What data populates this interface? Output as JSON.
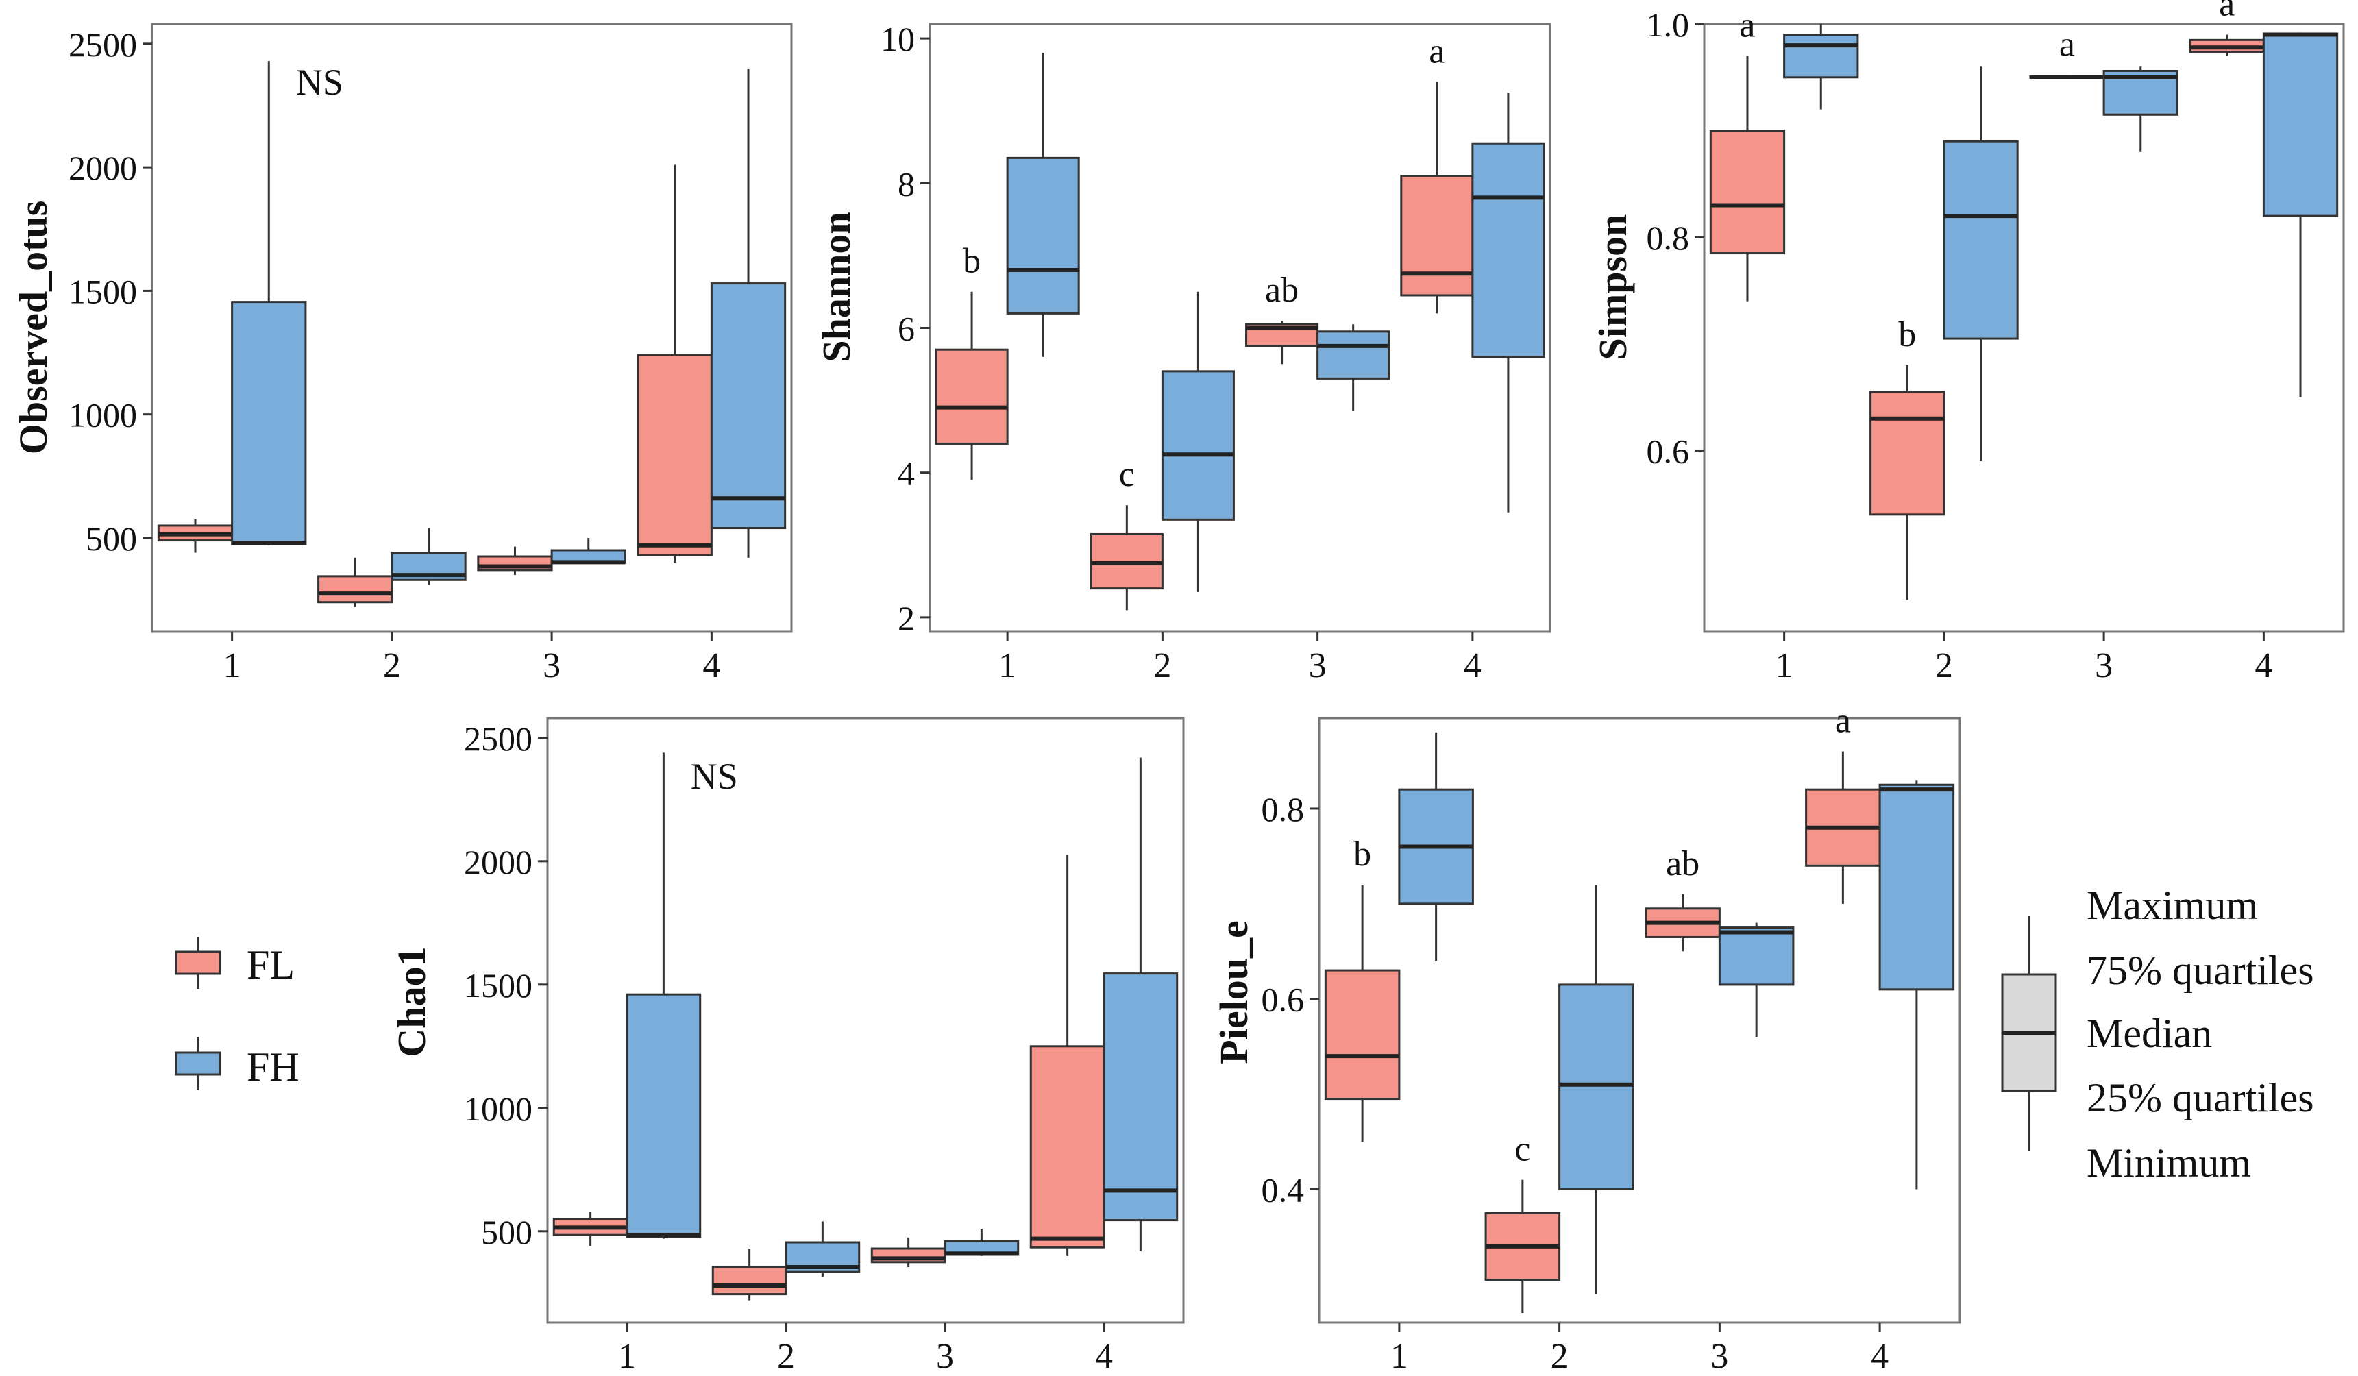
{
  "colors": {
    "FL": "#F4948A",
    "FH": "#7AADD9",
    "stroke": "#333333",
    "frame": "#777777",
    "legend_box": "#D9D9D9"
  },
  "legend": {
    "groups": [
      {
        "key": "FL",
        "label": "FL"
      },
      {
        "key": "FH",
        "label": "FH"
      }
    ],
    "box_labels": [
      "Maximum",
      "75% quartiles",
      "Median",
      "25% quartiles",
      "Minimum"
    ]
  },
  "chart_data": [
    {
      "id": "observed",
      "type": "box",
      "ylabel": "Observed_otus",
      "ylim": [
        120,
        2580
      ],
      "yticks": [
        500,
        1000,
        1500,
        2000,
        2500
      ],
      "categories": [
        "1",
        "2",
        "3",
        "4"
      ],
      "annotation": "NS",
      "series": [
        {
          "name": "FL",
          "boxes": [
            {
              "min": 440,
              "q1": 490,
              "median": 515,
              "q3": 550,
              "max": 575
            },
            {
              "min": 220,
              "q1": 240,
              "median": 275,
              "q3": 345,
              "max": 420
            },
            {
              "min": 350,
              "q1": 370,
              "median": 385,
              "q3": 425,
              "max": 465
            },
            {
              "min": 400,
              "q1": 430,
              "median": 470,
              "q3": 1240,
              "max": 2010
            }
          ]
        },
        {
          "name": "FH",
          "boxes": [
            {
              "min": 470,
              "q1": 475,
              "median": 480,
              "q3": 1455,
              "max": 2430
            },
            {
              "min": 310,
              "q1": 330,
              "median": 350,
              "q3": 440,
              "max": 540
            },
            {
              "min": 395,
              "q1": 400,
              "median": 402,
              "q3": 450,
              "max": 500
            },
            {
              "min": 420,
              "q1": 540,
              "median": 660,
              "q3": 1530,
              "max": 2400
            }
          ]
        }
      ]
    },
    {
      "id": "shannon",
      "type": "box",
      "ylabel": "Shannon",
      "ylim": [
        1.8,
        10.2
      ],
      "yticks": [
        2,
        4,
        6,
        8,
        10
      ],
      "categories": [
        "1",
        "2",
        "3",
        "4"
      ],
      "letters": [
        "b",
        "c",
        "ab",
        "a"
      ],
      "series": [
        {
          "name": "FL",
          "boxes": [
            {
              "min": 3.9,
              "q1": 4.4,
              "median": 4.9,
              "q3": 5.7,
              "max": 6.5
            },
            {
              "min": 2.1,
              "q1": 2.4,
              "median": 2.75,
              "q3": 3.15,
              "max": 3.55
            },
            {
              "min": 5.5,
              "q1": 5.75,
              "median": 6.0,
              "q3": 6.05,
              "max": 6.1
            },
            {
              "min": 6.2,
              "q1": 6.45,
              "median": 6.75,
              "q3": 8.1,
              "max": 9.4
            }
          ]
        },
        {
          "name": "FH",
          "boxes": [
            {
              "min": 5.6,
              "q1": 6.2,
              "median": 6.8,
              "q3": 8.35,
              "max": 9.8
            },
            {
              "min": 2.35,
              "q1": 3.35,
              "median": 4.25,
              "q3": 5.4,
              "max": 6.5
            },
            {
              "min": 4.85,
              "q1": 5.3,
              "median": 5.75,
              "q3": 5.95,
              "max": 6.05
            },
            {
              "min": 3.45,
              "q1": 5.6,
              "median": 7.8,
              "q3": 8.55,
              "max": 9.25
            }
          ]
        }
      ]
    },
    {
      "id": "simpson",
      "type": "box",
      "ylabel": "Simpson",
      "ylim": [
        0.43,
        1.0
      ],
      "yticks": [
        0.6,
        0.8,
        1.0
      ],
      "ytick_labels": [
        "0.6",
        "0.8",
        "1.0"
      ],
      "categories": [
        "1",
        "2",
        "3",
        "4"
      ],
      "letters": [
        "a",
        "b",
        "a",
        "a"
      ],
      "series": [
        {
          "name": "FL",
          "boxes": [
            {
              "min": 0.74,
              "q1": 0.785,
              "median": 0.83,
              "q3": 0.9,
              "max": 0.97
            },
            {
              "min": 0.46,
              "q1": 0.54,
              "median": 0.63,
              "q3": 0.655,
              "max": 0.68
            },
            {
              "min": 0.95,
              "q1": 0.95,
              "median": 0.95,
              "q3": 0.951,
              "max": 0.952
            },
            {
              "min": 0.97,
              "q1": 0.974,
              "median": 0.978,
              "q3": 0.985,
              "max": 0.99
            }
          ]
        },
        {
          "name": "FH",
          "boxes": [
            {
              "min": 0.92,
              "q1": 0.95,
              "median": 0.98,
              "q3": 0.99,
              "max": 1.0
            },
            {
              "min": 0.59,
              "q1": 0.705,
              "median": 0.82,
              "q3": 0.89,
              "max": 0.96
            },
            {
              "min": 0.88,
              "q1": 0.915,
              "median": 0.95,
              "q3": 0.956,
              "max": 0.96
            },
            {
              "min": 0.65,
              "q1": 0.82,
              "median": 0.99,
              "q3": 0.991,
              "max": 0.992
            }
          ]
        }
      ]
    },
    {
      "id": "chao1",
      "type": "box",
      "ylabel": "Chao1",
      "ylim": [
        130,
        2580
      ],
      "yticks": [
        500,
        1000,
        1500,
        2000,
        2500
      ],
      "categories": [
        "1",
        "2",
        "3",
        "4"
      ],
      "annotation": "NS",
      "series": [
        {
          "name": "FL",
          "boxes": [
            {
              "min": 440,
              "q1": 485,
              "median": 515,
              "q3": 550,
              "max": 580
            },
            {
              "min": 220,
              "q1": 245,
              "median": 280,
              "q3": 355,
              "max": 430
            },
            {
              "min": 355,
              "q1": 375,
              "median": 390,
              "q3": 430,
              "max": 475
            },
            {
              "min": 400,
              "q1": 435,
              "median": 470,
              "q3": 1250,
              "max": 2025
            }
          ]
        },
        {
          "name": "FH",
          "boxes": [
            {
              "min": 470,
              "q1": 478,
              "median": 485,
              "q3": 1460,
              "max": 2440
            },
            {
              "min": 315,
              "q1": 335,
              "median": 355,
              "q3": 455,
              "max": 540
            },
            {
              "min": 400,
              "q1": 405,
              "median": 410,
              "q3": 460,
              "max": 510
            },
            {
              "min": 420,
              "q1": 545,
              "median": 665,
              "q3": 1545,
              "max": 2420
            }
          ]
        }
      ]
    },
    {
      "id": "pielou",
      "type": "box",
      "ylabel": "Pielou_e",
      "ylim": [
        0.26,
        0.895
      ],
      "yticks": [
        0.4,
        0.6,
        0.8
      ],
      "ytick_labels": [
        "0.4",
        "0.6",
        "0.8"
      ],
      "categories": [
        "1",
        "2",
        "3",
        "4"
      ],
      "letters": [
        "b",
        "c",
        "ab",
        "a"
      ],
      "series": [
        {
          "name": "FL",
          "boxes": [
            {
              "min": 0.45,
              "q1": 0.495,
              "median": 0.54,
              "q3": 0.63,
              "max": 0.72
            },
            {
              "min": 0.27,
              "q1": 0.305,
              "median": 0.34,
              "q3": 0.375,
              "max": 0.41
            },
            {
              "min": 0.65,
              "q1": 0.665,
              "median": 0.68,
              "q3": 0.695,
              "max": 0.71
            },
            {
              "min": 0.7,
              "q1": 0.74,
              "median": 0.78,
              "q3": 0.82,
              "max": 0.86
            }
          ]
        },
        {
          "name": "FH",
          "boxes": [
            {
              "min": 0.64,
              "q1": 0.7,
              "median": 0.76,
              "q3": 0.82,
              "max": 0.88
            },
            {
              "min": 0.29,
              "q1": 0.4,
              "median": 0.51,
              "q3": 0.615,
              "max": 0.72
            },
            {
              "min": 0.56,
              "q1": 0.615,
              "median": 0.67,
              "q3": 0.675,
              "max": 0.68
            },
            {
              "min": 0.4,
              "q1": 0.61,
              "median": 0.82,
              "q3": 0.825,
              "max": 0.83
            }
          ]
        }
      ]
    }
  ]
}
